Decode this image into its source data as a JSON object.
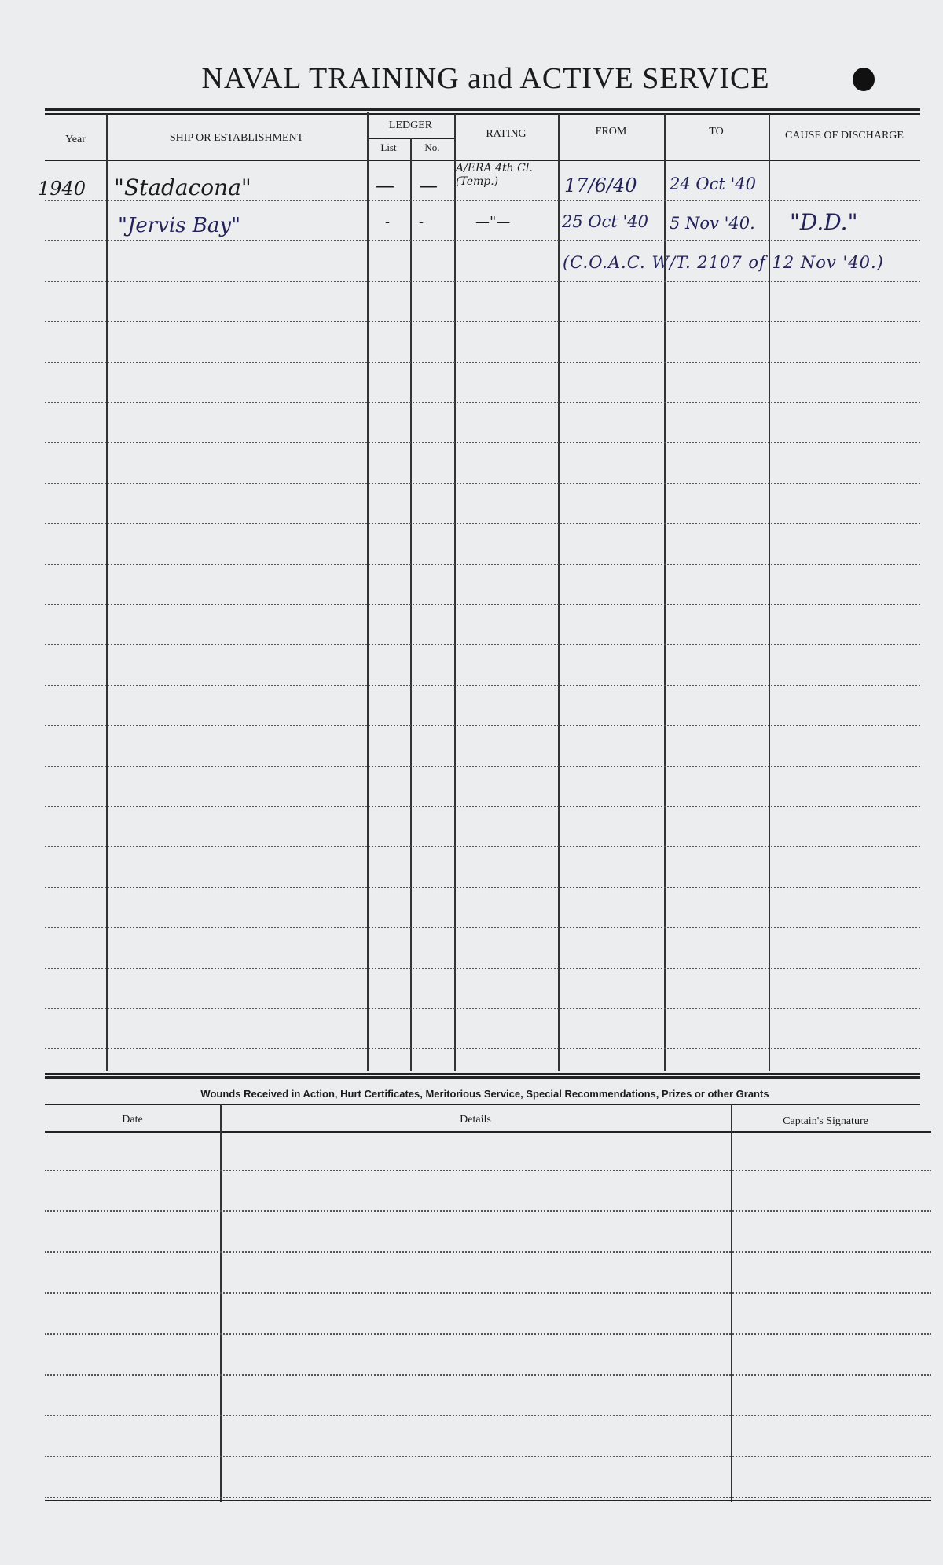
{
  "title": "NAVAL TRAINING and ACTIVE SERVICE",
  "service_table": {
    "headers": {
      "year": "Year",
      "ship": "SHIP OR ESTABLISHMENT",
      "ledger": "LEDGER",
      "ledger_list": "List",
      "ledger_no": "No.",
      "rating": "RATING",
      "from": "FROM",
      "to": "TO",
      "cause": "CAUSE OF DISCHARGE"
    },
    "entries": [
      {
        "year": "1940",
        "ship": "\"Stadacona\"",
        "list": "—",
        "no": "—",
        "rating": "A/ERA 4th Cl. (Temp.)",
        "from": "17/6/40",
        "to": "24 Oct '40",
        "cause": ""
      },
      {
        "year": "",
        "ship": "\"Jervis Bay\"",
        "list": "-",
        "no": "-",
        "rating": "—\"—",
        "from": "25 Oct '40",
        "to": "5 Nov '40.",
        "cause": "\"D.D.\""
      },
      {
        "note": "(C.O.A.C. W/T. 2107 of 12 Nov '40.)"
      }
    ]
  },
  "awards_table": {
    "heading": "Wounds Received in Action, Hurt Certificates, Meritorious Service, Special Recommendations, Prizes or other Grants",
    "headers": {
      "date": "Date",
      "details": "Details",
      "signature": "Captain's Signature"
    }
  }
}
